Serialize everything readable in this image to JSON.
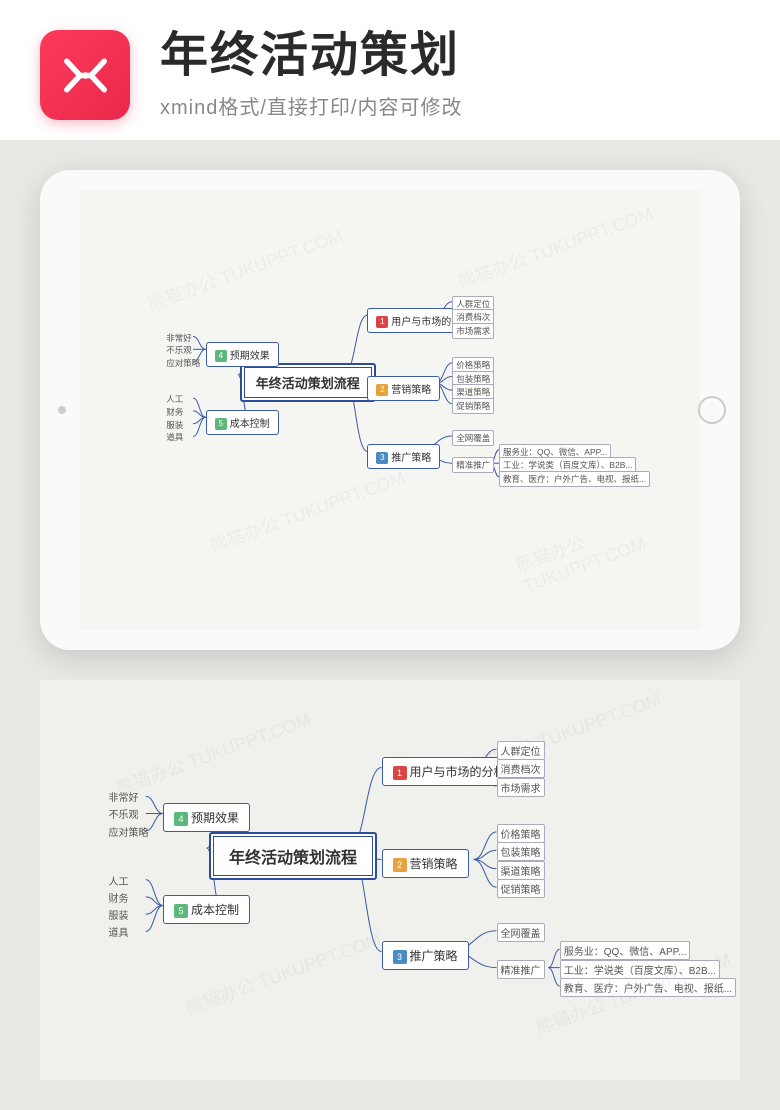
{
  "header": {
    "title": "年终活动策划",
    "subtitle": "xmind格式/直接打印/内容可修改"
  },
  "colors": {
    "logo_bg": "#e8284a",
    "center_border": "#2c4d9c",
    "node_border": "#3a5ba8",
    "num1": "#d94545",
    "num2": "#e6a23c",
    "num3": "#4a8bc2",
    "num4": "#5cb87a",
    "num5": "#5cb87a",
    "line": "#3a5ba8",
    "bg": "#f0f0ee"
  },
  "mindmap": {
    "center": "年终活动策划流程",
    "right": [
      {
        "num": "1",
        "num_color": "#d94545",
        "label": "用户与市场的分析",
        "children": [
          {
            "label": "人群定位"
          },
          {
            "label": "消费档次"
          },
          {
            "label": "市场需求"
          }
        ]
      },
      {
        "num": "2",
        "num_color": "#e6a23c",
        "label": "营销策略",
        "children": [
          {
            "label": "价格策略"
          },
          {
            "label": "包装策略"
          },
          {
            "label": "渠道策略"
          },
          {
            "label": "促销策略"
          }
        ]
      },
      {
        "num": "3",
        "num_color": "#4a8bc2",
        "label": "推广策略",
        "children": [
          {
            "label": "全网覆盖"
          },
          {
            "label": "精准推广",
            "children": [
              {
                "label": "服务业：QQ、微信、APP..."
              },
              {
                "label": "工业：学说类（百度文库）、B2B..."
              },
              {
                "label": "教育、医疗：户外广告、电视、报纸..."
              }
            ]
          }
        ]
      }
    ],
    "left": [
      {
        "num": "4",
        "num_color": "#5cb87a",
        "label": "预期效果",
        "children": [
          {
            "label": "非常好"
          },
          {
            "label": "不乐观"
          },
          {
            "label": "应对策略"
          }
        ]
      },
      {
        "num": "5",
        "num_color": "#5cb87a",
        "label": "成本控制",
        "children": [
          {
            "label": "人工"
          },
          {
            "label": "财务"
          },
          {
            "label": "服装"
          },
          {
            "label": "道具"
          }
        ]
      }
    ]
  },
  "watermark": "熊猫办公 TUKUPPT.COM"
}
